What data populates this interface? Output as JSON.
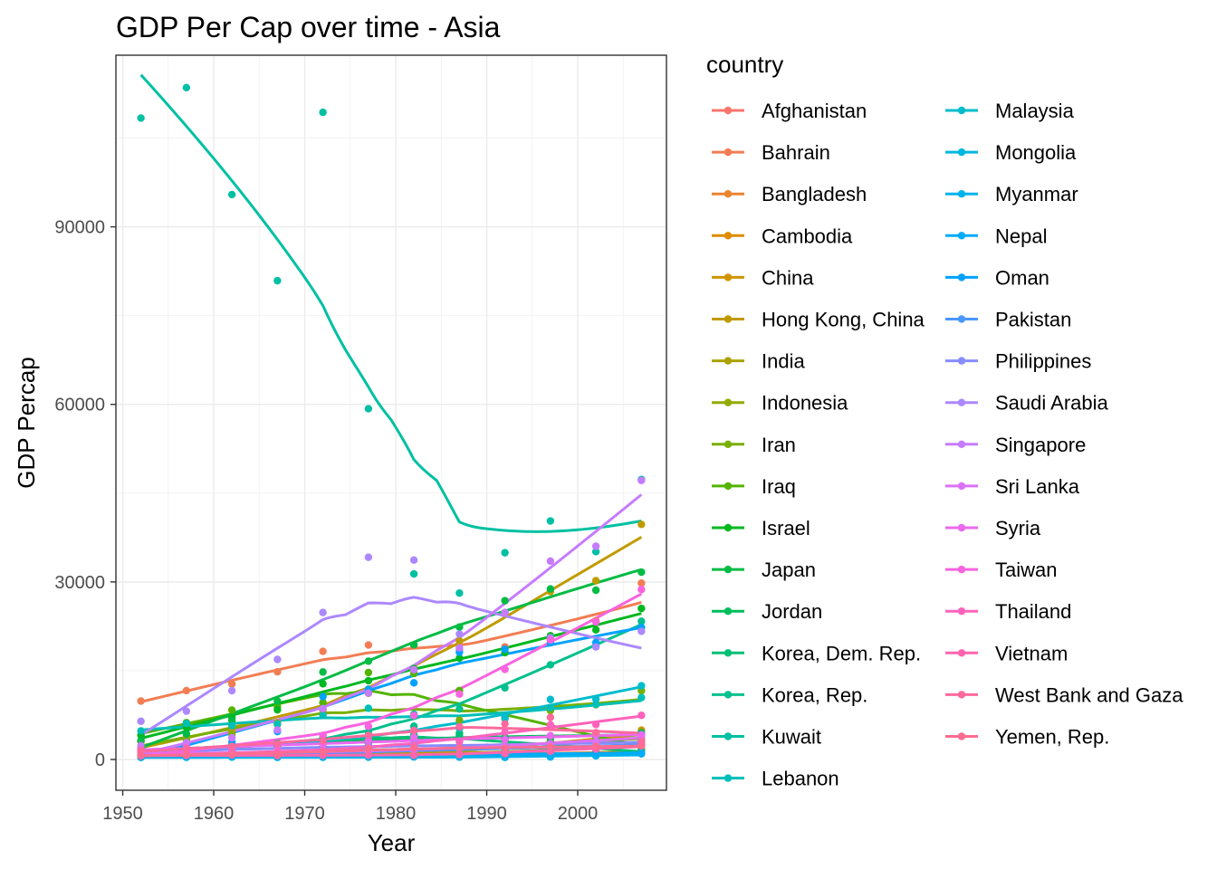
{
  "chart_data": {
    "type": "scatter",
    "title": "GDP Per Cap over time - Asia",
    "xlabel": "Year",
    "ylabel": "GDP Percap",
    "xlim": [
      1949.25,
      2009.75
    ],
    "ylim": [
      -5200,
      119000
    ],
    "x_ticks": [
      1950,
      1960,
      1970,
      1980,
      1990,
      2000
    ],
    "y_ticks": [
      0,
      30000,
      60000,
      90000
    ],
    "grid": true,
    "legend": {
      "title": "country",
      "placement": "right",
      "columns": 2
    },
    "years": [
      1952,
      1957,
      1962,
      1967,
      1972,
      1977,
      1982,
      1987,
      1992,
      1997,
      2002,
      2007
    ],
    "series": [
      {
        "name": "Afghanistan",
        "color": "#F8766D",
        "values": [
          779,
          821,
          853,
          836,
          740,
          786,
          978,
          852,
          649,
          635,
          727,
          975
        ]
      },
      {
        "name": "Bahrain",
        "color": "#F27D53",
        "values": [
          9867,
          11636,
          12753,
          14805,
          18269,
          19340,
          19211,
          18524,
          19036,
          20292,
          23404,
          29796
        ]
      },
      {
        "name": "Bangladesh",
        "color": "#E98531",
        "values": [
          684,
          662,
          686,
          721,
          630,
          660,
          677,
          752,
          838,
          973,
          1136,
          1391
        ]
      },
      {
        "name": "Cambodia",
        "color": "#DE8C00",
        "values": [
          368,
          434,
          497,
          523,
          422,
          525,
          624,
          684,
          682,
          734,
          896,
          1713
        ]
      },
      {
        "name": "China",
        "color": "#D09400",
        "values": [
          400,
          576,
          488,
          613,
          677,
          741,
          962,
          1379,
          1656,
          2289,
          3119,
          4959
        ]
      },
      {
        "name": "Hong Kong, China",
        "color": "#BF9B00",
        "values": [
          3054,
          3629,
          4693,
          6198,
          8316,
          11186,
          14561,
          20038,
          24758,
          28378,
          30209,
          39725
        ]
      },
      {
        "name": "India",
        "color": "#ABA300",
        "values": [
          547,
          590,
          658,
          701,
          724,
          813,
          856,
          977,
          1164,
          1459,
          1747,
          2452
        ]
      },
      {
        "name": "Indonesia",
        "color": "#94AA00",
        "values": [
          750,
          859,
          849,
          763,
          1111,
          1383,
          1517,
          1748,
          2383,
          3119,
          2874,
          3541
        ]
      },
      {
        "name": "Iran",
        "color": "#79AF00",
        "values": [
          3035,
          3291,
          4188,
          5907,
          9613,
          11889,
          7608,
          6643,
          7235,
          8264,
          9241,
          11606
        ]
      },
      {
        "name": "Iraq",
        "color": "#53B400",
        "values": [
          4130,
          6229,
          8342,
          8931,
          9576,
          14688,
          14517,
          11644,
          3746,
          3076,
          4391,
          4471
        ]
      },
      {
        "name": "Israel",
        "color": "#00B81F",
        "values": [
          4087,
          5385,
          7106,
          8394,
          12787,
          13306,
          15367,
          17123,
          18051,
          20897,
          21906,
          25523
        ]
      },
      {
        "name": "Japan",
        "color": "#00BB44",
        "values": [
          3217,
          4318,
          6577,
          9848,
          14779,
          16610,
          19384,
          22376,
          26825,
          28817,
          28605,
          31656
        ]
      },
      {
        "name": "Jordan",
        "color": "#00BD5C",
        "values": [
          1547,
          1886,
          2348,
          2742,
          2110,
          2852,
          4161,
          4448,
          3431,
          3645,
          3845,
          4519
        ]
      },
      {
        "name": "Korea, Dem. Rep.",
        "color": "#00BF75",
        "values": [
          1088,
          1571,
          1622,
          2144,
          3702,
          4106,
          4106,
          4106,
          3726,
          1691,
          1647,
          1593
        ]
      },
      {
        "name": "Korea, Rep.",
        "color": "#00C08D",
        "values": [
          1031,
          1488,
          1536,
          2029,
          3031,
          4657,
          5623,
          8533,
          12104,
          15994,
          19234,
          23348
        ]
      },
      {
        "name": "Kuwait",
        "color": "#00C0A3",
        "values": [
          108382,
          113523,
          95458,
          80895,
          109348,
          59265,
          31354,
          28118,
          34933,
          40301,
          35110,
          47307
        ]
      },
      {
        "name": "Lebanon",
        "color": "#00BFB8",
        "values": [
          4834,
          6090,
          5714,
          6006,
          7486,
          8659,
          7640,
          5377,
          6891,
          8754,
          9314,
          10461
        ]
      },
      {
        "name": "Malaysia",
        "color": "#00BCCC",
        "values": [
          1831,
          1810,
          2036,
          2278,
          2850,
          3828,
          4920,
          5249,
          7277,
          10132,
          10207,
          12452
        ]
      },
      {
        "name": "Mongolia",
        "color": "#00B8DE",
        "values": [
          787,
          912,
          1056,
          1226,
          1421,
          1648,
          1842,
          2155,
          1639,
          1558,
          1646,
          3096
        ]
      },
      {
        "name": "Myanmar",
        "color": "#00B2ED",
        "values": [
          331,
          350,
          388,
          349,
          357,
          371,
          424,
          385,
          347,
          415,
          611,
          944
        ]
      },
      {
        "name": "Nepal",
        "color": "#00ABFA",
        "values": [
          546,
          598,
          652,
          676,
          674,
          695,
          718,
          775,
          897,
          1011,
          1057,
          1091
        ]
      },
      {
        "name": "Oman",
        "color": "#00A2FF",
        "values": [
          1828,
          2243,
          2924,
          4721,
          10618,
          11848,
          12955,
          18115,
          18617,
          19702,
          19775,
          22316
        ]
      },
      {
        "name": "Pakistan",
        "color": "#4B97FF",
        "values": [
          685,
          748,
          804,
          942,
          1050,
          1176,
          1443,
          1705,
          1972,
          2049,
          2093,
          2606
        ]
      },
      {
        "name": "Philippines",
        "color": "#868CFF",
        "values": [
          1273,
          1548,
          1650,
          1814,
          1990,
          2373,
          2603,
          2189,
          2279,
          2537,
          2651,
          3190
        ]
      },
      {
        "name": "Saudi Arabia",
        "color": "#AC88FF",
        "values": [
          6460,
          8157,
          11626,
          16903,
          24837,
          34168,
          33693,
          21198,
          24841,
          20586,
          19014,
          21655
        ]
      },
      {
        "name": "Singapore",
        "color": "#C77CFF",
        "values": [
          2315,
          2843,
          3675,
          4978,
          8597,
          11210,
          15169,
          18861,
          24769,
          33519,
          36023,
          47143
        ]
      },
      {
        "name": "Sri Lanka",
        "color": "#DC71FA",
        "values": [
          1084,
          1073,
          1074,
          1136,
          1213,
          1349,
          1648,
          1877,
          2154,
          2664,
          3016,
          3970
        ]
      },
      {
        "name": "Syria",
        "color": "#EC69EF",
        "values": [
          1643,
          2117,
          2193,
          1882,
          2571,
          3195,
          3761,
          3116,
          3341,
          4014,
          4091,
          4185
        ]
      },
      {
        "name": "Taiwan",
        "color": "#F863DF",
        "values": [
          1207,
          1508,
          1823,
          2644,
          4063,
          5597,
          7426,
          11054,
          15216,
          20207,
          23235,
          28718
        ]
      },
      {
        "name": "Thailand",
        "color": "#FF62BC",
        "values": [
          758,
          793,
          1002,
          1296,
          1524,
          1961,
          2393,
          2982,
          4616,
          5853,
          5913,
          7458
        ]
      },
      {
        "name": "Vietnam",
        "color": "#FF65AE",
        "values": [
          605,
          676,
          773,
          637,
          700,
          714,
          707,
          821,
          989,
          1386,
          1764,
          2442
        ]
      },
      {
        "name": "West Bank and Gaza",
        "color": "#FF699C",
        "values": [
          1516,
          1827,
          2199,
          2650,
          3133,
          4070,
          4904,
          5512,
          6017,
          7111,
          4516,
          3025
        ]
      },
      {
        "name": "Yemen, Rep.",
        "color": "#FF6C91",
        "values": [
          782,
          805,
          826,
          863,
          1265,
          1830,
          1978,
          1972,
          1880,
          2117,
          2235,
          2281
        ]
      }
    ]
  }
}
